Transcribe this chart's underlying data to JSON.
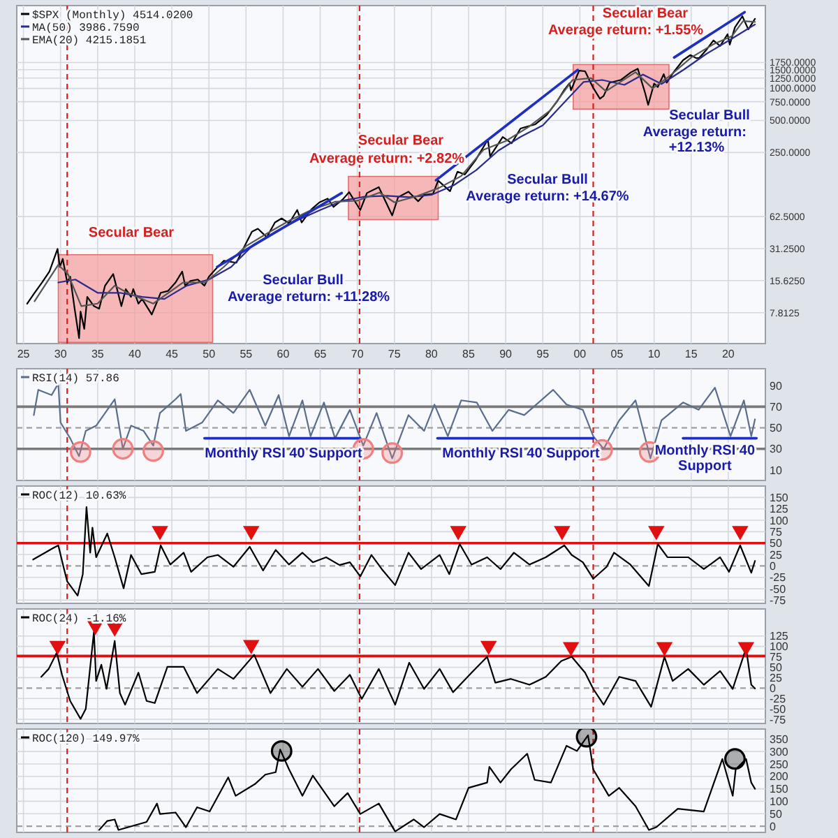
{
  "chart_data": [
    {
      "type": "line",
      "log": true,
      "grid": true,
      "legend": "top left",
      "xlim": [
        1924.1,
        2025
      ],
      "ylim": [
        4,
        6000
      ],
      "xticks": [
        {
          "value": 1925,
          "label": "25"
        },
        {
          "value": 1930,
          "label": "30"
        },
        {
          "value": 1935,
          "label": "35"
        },
        {
          "value": 1940,
          "label": "40"
        },
        {
          "value": 1945,
          "label": "45"
        },
        {
          "value": 1950,
          "label": "50"
        },
        {
          "value": 1955,
          "label": "55"
        },
        {
          "value": 1960,
          "label": "60"
        },
        {
          "value": 1965,
          "label": "65"
        },
        {
          "value": 1970,
          "label": "70"
        },
        {
          "value": 1975,
          "label": "75"
        },
        {
          "value": 1980,
          "label": "80"
        },
        {
          "value": 1985,
          "label": "85"
        },
        {
          "value": 1990,
          "label": "90"
        },
        {
          "value": 1995,
          "label": "95"
        },
        {
          "value": 2000,
          "label": "00"
        },
        {
          "value": 2005,
          "label": "05"
        },
        {
          "value": 2010,
          "label": "10"
        },
        {
          "value": 2015,
          "label": "15"
        },
        {
          "value": 2020,
          "label": "20"
        }
      ],
      "yticks": [
        {
          "value": 7.8125,
          "label": "7.8125"
        },
        {
          "value": 15.625,
          "label": "15.6250"
        },
        {
          "value": 31.25,
          "label": "31.2500"
        },
        {
          "value": 62.5,
          "label": "62.5000"
        },
        {
          "value": 250,
          "label": "250.0000"
        },
        {
          "value": 500,
          "label": "500.0000"
        },
        {
          "value": 750,
          "label": "750.0000"
        },
        {
          "value": 1000,
          "label": "1000.0000"
        },
        {
          "value": 1250,
          "label": "1250.0000"
        },
        {
          "value": 1500,
          "label": "1500.0000"
        },
        {
          "value": 1750,
          "label": "1750.0000"
        }
      ],
      "series": [
        {
          "name": "$SPX (Monthly) 4514.0200",
          "color": "#000000",
          "x": [
            1925.5,
            1926.5,
            1927.5,
            1928.5,
            1929.6,
            1929.9,
            1930.3,
            1930.9,
            1931.3,
            1931.9,
            1932.5,
            1932.7,
            1933.2,
            1933.6,
            1934.5,
            1935.2,
            1936,
            1937.1,
            1938.2,
            1938.8,
            1939.5,
            1939.8,
            1940.5,
            1941,
            1942.3,
            1943.5,
            1944.5,
            1945.5,
            1946.4,
            1946.8,
            1947.5,
            1948.5,
            1949.4,
            1950,
            1950.9,
            1952,
            1953.7,
            1954.5,
            1955.8,
            1956.6,
            1957.8,
            1958.9,
            1959.8,
            1960.8,
            1961.9,
            1962.5,
            1963.8,
            1964.9,
            1966,
            1966.8,
            1968,
            1968.9,
            1970.4,
            1971.3,
            1972.9,
            1974.7,
            1975.5,
            1976.9,
            1978.2,
            1979,
            1980.2,
            1980.9,
            1982.5,
            1983.5,
            1984.5,
            1985.9,
            1987.6,
            1987.9,
            1989.6,
            1990.8,
            1992,
            1994,
            1995.5,
            1996.9,
            1997.9,
            1998.6,
            1998.8,
            1999.9,
            2000.7,
            2001.7,
            2002.7,
            2003.2,
            2004,
            2005.5,
            2006.9,
            2007.8,
            2008.8,
            2009.2,
            2010,
            2010.5,
            2011.3,
            2011.7,
            2012.7,
            2013.9,
            2014.9,
            2015.7,
            2016.1,
            2017,
            2018,
            2018.9,
            2019.9,
            2020.2,
            2020.9,
            2021.9,
            2022.7,
            2023.6
          ],
          "values": [
            9.5,
            12,
            15,
            19,
            31,
            21,
            25,
            15,
            17,
            8.5,
            4.5,
            8,
            5.5,
            11,
            9,
            8.5,
            14,
            18,
            9,
            13,
            11,
            13,
            9.5,
            10.5,
            7.5,
            12,
            12.5,
            15,
            19,
            14,
            15.5,
            16,
            14,
            17,
            20,
            24,
            23,
            30,
            45,
            48,
            40,
            55,
            60,
            54,
            72,
            55,
            73,
            85,
            92,
            77,
            90,
            106,
            72,
            104,
            118,
            64,
            95,
            107,
            87,
            100,
            102,
            136,
            108,
            165,
            155,
            210,
            330,
            230,
            350,
            305,
            420,
            460,
            560,
            750,
            970,
            1120,
            960,
            1469,
            1450,
            1040,
            800,
            850,
            1130,
            1200,
            1420,
            1530,
            900,
            700,
            1110,
            1030,
            1360,
            1130,
            1440,
            1840,
            2060,
            1920,
            1940,
            2280,
            2820,
            2500,
            3230,
            2580,
            3750,
            4766,
            3585,
            4514
          ]
        },
        {
          "name": "MA(50) 3986.7590",
          "color": "#2b2b8c",
          "x": [
            1929.7,
            1932,
            1935,
            1938,
            1941,
            1944,
            1947,
            1950,
            1953,
            1956,
            1959,
            1962,
            1965,
            1968,
            1971,
            1974,
            1977,
            1980,
            1983,
            1986,
            1989,
            1992,
            1995,
            1998,
            2000.5,
            2003,
            2006,
            2008.5,
            2011,
            2014,
            2017,
            2020,
            2023.6
          ],
          "values": [
            15,
            16,
            12,
            12,
            11,
            10.5,
            14,
            16,
            21,
            34,
            45,
            58,
            72,
            88,
            96,
            98,
            95,
            100,
            123,
            170,
            260,
            350,
            450,
            750,
            1150,
            1200,
            1080,
            1350,
            1100,
            1500,
            2100,
            2800,
            3987
          ]
        },
        {
          "name": "EMA(20) 4215.1851",
          "color": "#555555",
          "x": [
            1926.5,
            1929.7,
            1931,
            1932.8,
            1935,
            1937.3,
            1939,
            1942.5,
            1946.5,
            1949.5,
            1952,
            1955,
            1958,
            1961,
            1964,
            1967,
            1970,
            1973,
            1975,
            1978,
            1981,
            1984,
            1987,
            1990,
            1993,
            1996,
            1999,
            2001.5,
            2003.5,
            2007.5,
            2009.8,
            2012,
            2015,
            2018,
            2020.5,
            2022,
            2023.6
          ],
          "values": [
            10,
            22,
            18,
            9,
            9.5,
            14,
            12,
            9.5,
            15,
            15,
            21,
            33,
            44,
            58,
            73,
            86,
            88,
            105,
            85,
            97,
            116,
            150,
            265,
            320,
            430,
            620,
            1200,
            1250,
            940,
            1420,
            1000,
            1290,
            1950,
            2600,
            3100,
            4300,
            4215
          ]
        },
        {
          "type": "line",
          "color": "#1f2fbf",
          "x": [
            1951.1,
            1967.9
          ],
          "values": [
            21,
            104
          ]
        },
        {
          "type": "line",
          "color": "#1f2fbf",
          "x": [
            1980.6,
            1999.7
          ],
          "values": [
            137,
            1490
          ]
        },
        {
          "type": "line",
          "color": "#1f2fbf",
          "x": [
            2012.7,
            2022.2
          ],
          "values": [
            1950,
            5200
          ]
        }
      ],
      "ref_lines": [
        {
          "axis": "x",
          "value": 1930.9,
          "color": "#d62020",
          "line_style": "dashed"
        },
        {
          "axis": "x",
          "value": 1970.3,
          "color": "#d62020",
          "line_style": "dashed"
        },
        {
          "axis": "x",
          "value": 2001.8,
          "color": "#d62020",
          "line_style": "dashed"
        }
      ],
      "bands": [
        {
          "axis": "x",
          "from": 1929.7,
          "to": 1950.5,
          "color": "#f4a0a0"
        },
        {
          "axis": "x",
          "from": 1968.8,
          "to": 1980.9,
          "color": "#f4a0a0"
        },
        {
          "axis": "x",
          "from": 1999.1,
          "to": 2012,
          "color": "#f4a0a0"
        }
      ],
      "annotations": [
        "Secular Bear",
        "Secular Bull",
        "Average return:  +11.28%",
        "Secular Bear",
        "Average return:  +2.82%",
        "Secular Bull",
        "Average return:  +14.67%",
        "Secular Bear",
        "Average return:  +1.55%",
        "Secular Bull",
        "Average return:  +12.13%"
      ]
    },
    {
      "type": "line",
      "grid": "x",
      "legend": "top left",
      "tick_labels": "y",
      "xlim": [
        1924.1,
        2025
      ],
      "ylim": [
        0,
        106
      ],
      "xticks": [
        1925,
        1930,
        1935,
        1940,
        1945,
        1950,
        1955,
        1960,
        1965,
        1970,
        1975,
        1980,
        1985,
        1990,
        1995,
        2000,
        2005,
        2010,
        2015,
        2020
      ],
      "yticks": [
        10,
        30,
        50,
        70,
        90
      ],
      "series": [
        {
          "name": "RSI(14) 57.86",
          "color": "#5a6e8c",
          "x": [
            1926.4,
            1927,
            1928.8,
            1929.7,
            1930,
            1931.3,
            1932.5,
            1933.4,
            1934.8,
            1937.3,
            1938.4,
            1939.5,
            1941.2,
            1942.5,
            1943.4,
            1945.5,
            1946.2,
            1946.9,
            1949.1,
            1951.2,
            1953.3,
            1955.5,
            1957.6,
            1959.4,
            1960.8,
            1962.6,
            1963.7,
            1965.5,
            1967,
            1969,
            1970.8,
            1972.6,
            1974.7,
            1976.9,
            1979,
            1980.4,
            1982.2,
            1984,
            1986.1,
            1988.2,
            1990.4,
            1992.5,
            1996.4,
            1998.2,
            2000.4,
            2001.8,
            2003.2,
            2005.3,
            2007.5,
            2009.5,
            2011,
            2013.9,
            2016,
            2018.2,
            2020.3,
            2022.1,
            2023.1,
            2023.6
          ],
          "values": [
            62,
            86,
            81,
            92,
            55,
            40,
            23,
            47,
            52,
            77,
            30,
            52,
            47,
            33,
            64,
            77,
            82,
            47,
            55,
            76,
            64,
            86,
            52,
            81,
            42,
            76,
            42,
            74,
            40,
            67,
            33,
            64,
            21,
            62,
            47,
            72,
            42,
            76,
            74,
            47,
            67,
            62,
            86,
            72,
            67,
            42,
            30,
            57,
            76,
            21,
            57,
            74,
            67,
            88,
            42,
            76,
            42,
            58
          ]
        },
        {
          "type": "line",
          "color": "#1f2fbf",
          "x": [
            1949.4,
            1970.4
          ],
          "values": [
            40,
            40
          ]
        },
        {
          "type": "line",
          "color": "#1f2fbf",
          "x": [
            1980.8,
            2001.8
          ],
          "values": [
            40,
            40
          ]
        },
        {
          "type": "line",
          "color": "#1f2fbf",
          "x": [
            2013.9,
            2023.8
          ],
          "values": [
            40,
            40
          ]
        },
        {
          "type": "scatter",
          "marker": "circle",
          "color": "#f08080",
          "x": [
            1932.7,
            1938.4,
            1942.5,
            1970.8,
            1974.7,
            2003,
            2009.4
          ],
          "values": [
            27,
            30,
            28,
            30,
            26,
            29,
            27
          ]
        }
      ],
      "ref_lines": [
        {
          "axis": "y",
          "value": 70,
          "color": "#7a7a7a",
          "line_style": "solid"
        },
        {
          "axis": "y",
          "value": 30,
          "color": "#7a7a7a",
          "line_style": "solid"
        },
        {
          "axis": "y",
          "value": 50,
          "color": "#a0a0a0",
          "line_style": "dashed"
        },
        {
          "axis": "x",
          "value": 1930.9,
          "color": "#d62020",
          "line_style": "dashed"
        },
        {
          "axis": "x",
          "value": 1970.3,
          "color": "#d62020",
          "line_style": "dashed"
        },
        {
          "axis": "x",
          "value": 2001.8,
          "color": "#d62020",
          "line_style": "dashed"
        }
      ],
      "annotations": [
        "Monthly RSI 40 Support",
        "Monthly RSI 40 Support",
        "Monthly RSI 40 Support"
      ]
    },
    {
      "type": "line",
      "grid": true,
      "legend": "top left",
      "tick_labels": "y",
      "xlim": [
        1924.1,
        2025
      ],
      "ylim": [
        -82,
        175
      ],
      "xticks": [
        1925,
        1930,
        1935,
        1940,
        1945,
        1950,
        1955,
        1960,
        1965,
        1970,
        1975,
        1980,
        1985,
        1990,
        1995,
        2000,
        2005,
        2010,
        2015,
        2020
      ],
      "yticks": [
        -75,
        -50,
        -25,
        0,
        25,
        50,
        75,
        100,
        125,
        150
      ],
      "series": [
        {
          "name": "ROC(12) 10.63%",
          "color": "#000000",
          "x": [
            1926.3,
            1929.1,
            1929.7,
            1930.4,
            1930.9,
            1932.3,
            1933,
            1933.5,
            1934,
            1934.3,
            1934.8,
            1936.3,
            1937.3,
            1938.5,
            1939.5,
            1940.9,
            1942.7,
            1943.5,
            1944.8,
            1946.6,
            1947.6,
            1949.8,
            1951.2,
            1953.3,
            1955.5,
            1957.3,
            1959,
            1960.8,
            1962.6,
            1964,
            1965.8,
            1967.6,
            1969,
            1970.4,
            1971.9,
            1973.3,
            1975.1,
            1976.9,
            1978.6,
            1981.1,
            1982.4,
            1983.8,
            1985.4,
            1987.5,
            1989.3,
            1991.1,
            1993.2,
            1995.4,
            1997.9,
            1998.9,
            2000.4,
            2001.8,
            2003.6,
            2004.6,
            2006.8,
            2009.3,
            2010.5,
            2011.8,
            2014.6,
            2016.7,
            2018.9,
            2020.1,
            2021.6,
            2023.1,
            2023.6
          ],
          "values": [
            14,
            40,
            45,
            -2,
            -34,
            -65,
            -18,
            129,
            29,
            84,
            19,
            71,
            19,
            -49,
            24,
            -18,
            -13,
            45,
            3,
            29,
            -13,
            19,
            24,
            -2,
            42,
            -10,
            35,
            3,
            29,
            8,
            19,
            2,
            8,
            -23,
            24,
            -7,
            -42,
            29,
            -7,
            24,
            -18,
            48,
            3,
            19,
            -7,
            29,
            3,
            19,
            45,
            24,
            8,
            -28,
            -2,
            29,
            3,
            -44,
            48,
            19,
            19,
            -7,
            19,
            -13,
            45,
            -15,
            11
          ]
        },
        {
          "type": "scatter",
          "marker": "triangle",
          "color": "#e01010",
          "x": [
            1943.4,
            1955.7,
            1983.6,
            1997.6,
            2010.3,
            2021.6
          ],
          "values": [
            77,
            77,
            77,
            77,
            77,
            77
          ]
        }
      ],
      "ref_lines": [
        {
          "axis": "y",
          "value": 50,
          "color": "#e01010",
          "line_style": "solid"
        },
        {
          "axis": "y",
          "value": 0,
          "color": "#a0a0a0",
          "line_style": "dashed"
        },
        {
          "axis": "x",
          "value": 1930.9,
          "color": "#d62020",
          "line_style": "dashed"
        },
        {
          "axis": "x",
          "value": 1970.3,
          "color": "#d62020",
          "line_style": "dashed"
        },
        {
          "axis": "x",
          "value": 2001.8,
          "color": "#d62020",
          "line_style": "dashed"
        }
      ]
    },
    {
      "type": "line",
      "grid": true,
      "legend": "top left",
      "tick_labels": "y",
      "xlim": [
        1924.1,
        2025
      ],
      "ylim": [
        -85,
        190
      ],
      "xticks": [
        1925,
        1930,
        1935,
        1940,
        1945,
        1950,
        1955,
        1960,
        1965,
        1970,
        1975,
        1980,
        1985,
        1990,
        1995,
        2000,
        2005,
        2010,
        2015,
        2020
      ],
      "yticks": [
        -75,
        -50,
        -25,
        0,
        25,
        50,
        75,
        100,
        125
      ],
      "series": [
        {
          "name": "ROC(24) -1.16%",
          "color": "#000000",
          "x": [
            1927.4,
            1928.4,
            1929.5,
            1930.2,
            1931.3,
            1932.7,
            1933.4,
            1934.5,
            1934.8,
            1935.5,
            1936.2,
            1937.3,
            1938,
            1938.7,
            1940.5,
            1941.6,
            1942.7,
            1944.4,
            1946.6,
            1948.4,
            1951.2,
            1953.3,
            1956.1,
            1958.3,
            1960.5,
            1962.6,
            1964.7,
            1966.9,
            1969,
            1970.6,
            1972.9,
            1975.1,
            1977,
            1979,
            1981.1,
            1982.9,
            1985.4,
            1987.5,
            1988.6,
            1990.7,
            1993.2,
            1995.4,
            1997.5,
            1998.9,
            2000.7,
            2001.8,
            2003.2,
            2005.3,
            2007.5,
            2009.6,
            2011.4,
            2012.5,
            2014.6,
            2016.7,
            2018.9,
            2020.6,
            2022.4,
            2023.1,
            2023.6
          ],
          "values": [
            27,
            46,
            85,
            32,
            -31,
            -74,
            -50,
            135,
            17,
            56,
            -2,
            113,
            -12,
            -40,
            37,
            -31,
            -36,
            51,
            51,
            -12,
            46,
            22,
            80,
            -12,
            46,
            3,
            46,
            -7,
            32,
            -26,
            46,
            -40,
            61,
            -2,
            46,
            -10,
            37,
            75,
            13,
            22,
            8,
            27,
            65,
            75,
            37,
            -2,
            -40,
            27,
            17,
            -45,
            75,
            17,
            46,
            8,
            41,
            -2,
            96,
            8,
            -1
          ]
        },
        {
          "type": "scatter",
          "marker": "triangle",
          "color": "#e01010",
          "x": [
            1929.6,
            1934.7,
            1937.3,
            1955.7,
            1987.7,
            1998.8,
            2011.4,
            2022.4
          ],
          "values": [
            102,
            150,
            146,
            104,
            102,
            99,
            99,
            99
          ]
        }
      ],
      "ref_lines": [
        {
          "axis": "y",
          "value": 77,
          "color": "#e01010",
          "line_style": "solid"
        },
        {
          "axis": "y",
          "value": 0,
          "color": "#a0a0a0",
          "line_style": "dashed"
        },
        {
          "axis": "x",
          "value": 1930.9,
          "color": "#d62020",
          "line_style": "dashed"
        },
        {
          "axis": "x",
          "value": 1970.3,
          "color": "#d62020",
          "line_style": "dashed"
        },
        {
          "axis": "x",
          "value": 2001.8,
          "color": "#d62020",
          "line_style": "dashed"
        }
      ]
    },
    {
      "type": "line",
      "grid": true,
      "legend": "top left",
      "tick_labels": "y",
      "xlim": [
        1924.1,
        2025
      ],
      "ylim": [
        -25,
        390
      ],
      "xticks": [
        1925,
        1930,
        1935,
        1940,
        1945,
        1950,
        1955,
        1960,
        1965,
        1970,
        1975,
        1980,
        1985,
        1990,
        1995,
        2000,
        2005,
        2010,
        2015,
        2020
      ],
      "yticks": [
        0,
        50,
        100,
        150,
        200,
        250,
        300,
        350
      ],
      "series": [
        {
          "name": "ROC(120) 149.97%",
          "color": "#000000",
          "x": [
            1935.2,
            1936.3,
            1937.3,
            1937.8,
            1941.6,
            1943,
            1943.4,
            1945.5,
            1946.9,
            1948.4,
            1950.1,
            1952.6,
            1953.6,
            1956.2,
            1957.6,
            1959,
            1959.6,
            1960.8,
            1962.6,
            1964,
            1966.9,
            1968.7,
            1970.4,
            1972.9,
            1975.1,
            1977.6,
            1979,
            1981.1,
            1983.3,
            1985,
            1987.5,
            1987.8,
            1989.3,
            1990.7,
            1992.9,
            1993.9,
            1996.1,
            1998.2,
            1999.6,
            2001.1,
            2001.8,
            2003.9,
            2005.3,
            2007.5,
            2009.3,
            2010.3,
            2013.2,
            2016.7,
            2019.2,
            2020.6,
            2021,
            2022.4,
            2023.1,
            2023.6
          ],
          "values": [
            -15,
            21,
            27,
            -15,
            17,
            91,
            49,
            55,
            -4,
            76,
            59,
            196,
            122,
            169,
            207,
            217,
            308,
            228,
            122,
            203,
            80,
            133,
            49,
            91,
            -21,
            27,
            -4,
            49,
            27,
            154,
            175,
            238,
            175,
            228,
            291,
            186,
            175,
            323,
            302,
            365,
            228,
            122,
            154,
            80,
            -15,
            -4,
            70,
            59,
            270,
            122,
            228,
            270,
            175,
            150
          ]
        },
        {
          "type": "scatter",
          "marker": "circle",
          "color": "#000000",
          "x": [
            1959.8,
            2000.9,
            2020.9
          ],
          "values": [
            302,
            359,
            270
          ]
        }
      ],
      "ref_lines": [
        {
          "axis": "y",
          "value": 0,
          "color": "#a0a0a0",
          "line_style": "dashed"
        },
        {
          "axis": "x",
          "value": 1930.9,
          "color": "#d62020",
          "line_style": "dashed"
        },
        {
          "axis": "x",
          "value": 1970.3,
          "color": "#d62020",
          "line_style": "dashed"
        },
        {
          "axis": "x",
          "value": 2001.8,
          "color": "#d62020",
          "line_style": "dashed"
        }
      ]
    }
  ]
}
